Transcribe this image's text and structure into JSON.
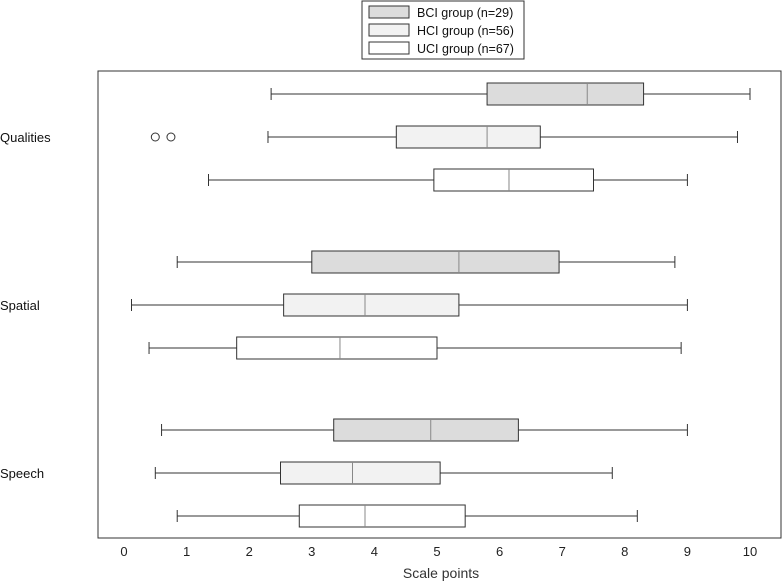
{
  "chart_data": {
    "type": "boxplot",
    "orientation": "horizontal",
    "title": "",
    "xlabel": "Scale points",
    "ylabel": "",
    "xlim": [
      0,
      10
    ],
    "xticks": [
      0,
      1,
      2,
      3,
      4,
      5,
      6,
      7,
      8,
      9,
      10
    ],
    "grid": false,
    "legend_position": "top-center",
    "categories": [
      "Qualities",
      "Spatial",
      "Speech"
    ],
    "series": [
      {
        "name": "BCI group (n=29)",
        "fill": "#dcdcdc",
        "boxes": [
          {
            "min": 2.35,
            "q1": 5.8,
            "median": 7.4,
            "q3": 8.3,
            "max": 10.0,
            "outliers": []
          },
          {
            "min": 0.85,
            "q1": 3.0,
            "median": 5.35,
            "q3": 6.95,
            "max": 8.8,
            "outliers": []
          },
          {
            "min": 0.6,
            "q1": 3.35,
            "median": 4.9,
            "q3": 6.3,
            "max": 9.0,
            "outliers": []
          }
        ]
      },
      {
        "name": "HCI group (n=56)",
        "fill": "#f2f2f2",
        "boxes": [
          {
            "min": 2.3,
            "q1": 4.35,
            "median": 5.8,
            "q3": 6.65,
            "max": 9.8,
            "outliers": [
              0.5,
              0.75
            ]
          },
          {
            "min": 0.12,
            "q1": 2.55,
            "median": 3.85,
            "q3": 5.35,
            "max": 9.0,
            "outliers": []
          },
          {
            "min": 0.5,
            "q1": 2.5,
            "median": 3.65,
            "q3": 5.05,
            "max": 7.8,
            "outliers": []
          }
        ]
      },
      {
        "name": "UCI group (n=67)",
        "fill": "#ffffff",
        "boxes": [
          {
            "min": 1.35,
            "q1": 4.95,
            "median": 6.15,
            "q3": 7.5,
            "max": 9.0,
            "outliers": []
          },
          {
            "min": 0.4,
            "q1": 1.8,
            "median": 3.45,
            "q3": 5.0,
            "max": 8.9,
            "outliers": []
          },
          {
            "min": 0.85,
            "q1": 2.8,
            "median": 3.85,
            "q3": 5.45,
            "max": 8.2,
            "outliers": []
          }
        ]
      }
    ]
  }
}
